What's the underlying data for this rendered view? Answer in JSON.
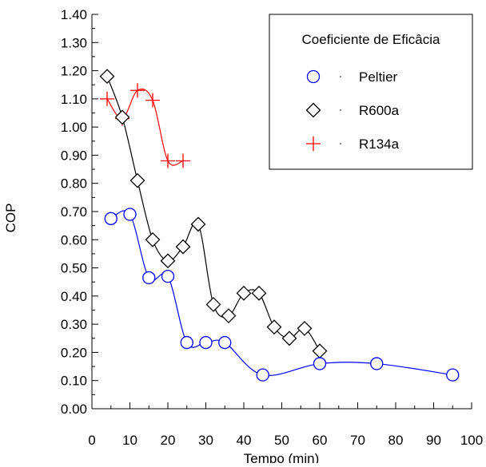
{
  "chart_data": {
    "type": "line",
    "xlabel": "Tempo (min)",
    "ylabel": "COP",
    "xlim": [
      0,
      100
    ],
    "ylim": [
      0,
      1.4
    ],
    "x_ticks": [
      "0",
      "10",
      "20",
      "30",
      "40",
      "50",
      "60",
      "70",
      "80",
      "90",
      "100"
    ],
    "y_ticks": [
      "0.00",
      "0.10",
      "0.20",
      "0.30",
      "0.40",
      "0.50",
      "0.60",
      "0.70",
      "0.80",
      "0.90",
      "1.00",
      "1.10",
      "1.20",
      "1.30",
      "1.40"
    ],
    "grid": false,
    "legend": {
      "title": "Coeficiente de Eficâcia",
      "position": "top-right"
    },
    "series": [
      {
        "name": "Peltier",
        "color": "#0000ff",
        "marker": "circle",
        "x": [
          5,
          10,
          15,
          20,
          25,
          30,
          35,
          45,
          60,
          75,
          95
        ],
        "y": [
          0.675,
          0.69,
          0.465,
          0.47,
          0.235,
          0.235,
          0.235,
          0.12,
          0.16,
          0.16,
          0.12
        ]
      },
      {
        "name": "R600a",
        "color": "#000000",
        "marker": "diamond",
        "x": [
          4,
          8,
          12,
          16,
          20,
          24,
          28,
          32,
          36,
          40,
          44,
          48,
          52,
          56,
          60
        ],
        "y": [
          1.18,
          1.035,
          0.81,
          0.6,
          0.525,
          0.575,
          0.655,
          0.37,
          0.33,
          0.41,
          0.41,
          0.29,
          0.25,
          0.285,
          0.205
        ]
      },
      {
        "name": "R134a",
        "color": "#ff0000",
        "marker": "plus",
        "x": [
          4,
          8,
          12,
          16,
          20,
          24
        ],
        "y": [
          1.1,
          1.03,
          1.13,
          1.095,
          0.88,
          0.88
        ]
      }
    ]
  }
}
